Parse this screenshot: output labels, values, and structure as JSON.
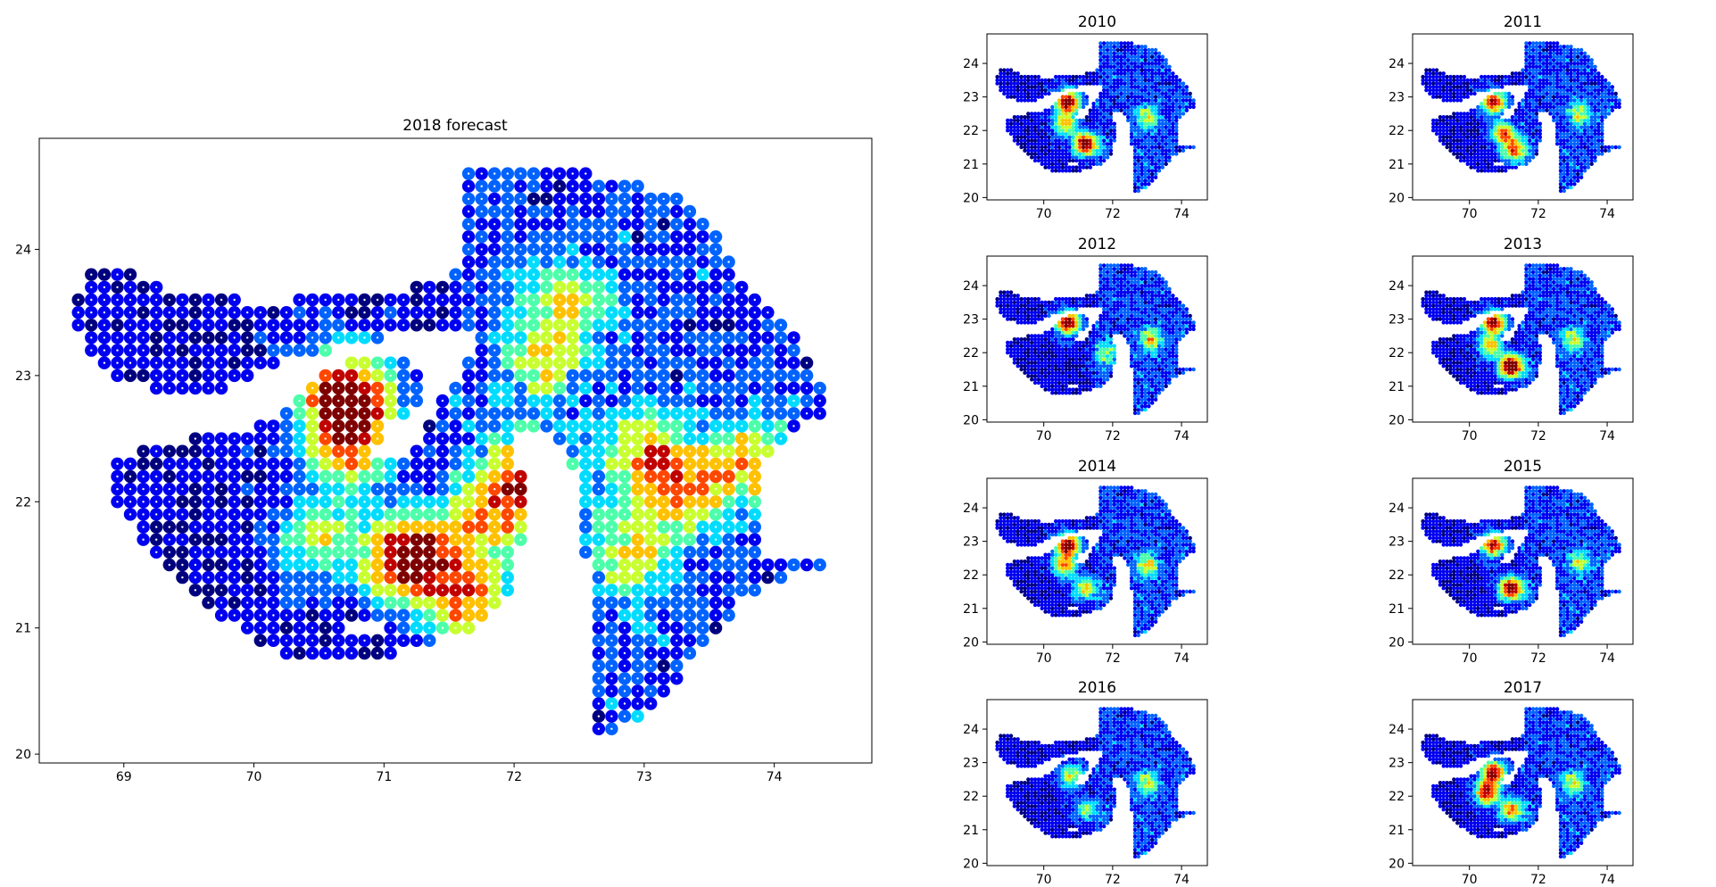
{
  "figure": {
    "main_title": "2018 forecast",
    "colormap": [
      "#00007f",
      "#0000f0",
      "#0063ff",
      "#00dcff",
      "#4dffaa",
      "#c8ff2f",
      "#ffc100",
      "#ff4700",
      "#c10000",
      "#7f0000"
    ]
  },
  "chart_data": [
    {
      "type": "scatter",
      "title": "2018 forecast",
      "xlabel": "",
      "ylabel": "",
      "xlim": [
        68.35,
        74.75
      ],
      "ylim": [
        19.93,
        24.88
      ],
      "xticks": [
        69,
        70,
        71,
        72,
        73,
        74
      ],
      "yticks": [
        20,
        21,
        22,
        23,
        24
      ],
      "grid": false,
      "marker_size": "large",
      "hotspots": [
        {
          "x": 71.2,
          "y": 21.55,
          "intensity": 0.95
        },
        {
          "x": 70.7,
          "y": 22.85,
          "intensity": 0.85
        },
        {
          "x": 70.75,
          "y": 22.45,
          "intensity": 0.55
        },
        {
          "x": 71.65,
          "y": 21.2,
          "intensity": 0.5
        },
        {
          "x": 73.0,
          "y": 22.4,
          "intensity": 0.45
        },
        {
          "x": 73.8,
          "y": 22.3,
          "intensity": 0.45
        },
        {
          "x": 72.1,
          "y": 22.2,
          "intensity": 0.6
        },
        {
          "x": 72.9,
          "y": 21.6,
          "intensity": 0.4
        },
        {
          "x": 73.3,
          "y": 22.1,
          "intensity": 0.45
        },
        {
          "x": 70.5,
          "y": 21.7,
          "intensity": 0.4
        },
        {
          "x": 71.8,
          "y": 21.9,
          "intensity": 0.45
        },
        {
          "x": 72.4,
          "y": 23.6,
          "intensity": 0.4
        },
        {
          "x": 72.2,
          "y": 23.1,
          "intensity": 0.35
        }
      ]
    },
    {
      "type": "scatter",
      "title": "2010",
      "xticks": [
        70,
        72,
        74
      ],
      "yticks": [
        20,
        21,
        22,
        23,
        24
      ],
      "xlim": [
        68.35,
        74.75
      ],
      "ylim": [
        19.93,
        24.88
      ],
      "hotspots": [
        {
          "x": 71.2,
          "y": 21.6,
          "intensity": 0.9
        },
        {
          "x": 70.7,
          "y": 22.85,
          "intensity": 0.85
        },
        {
          "x": 70.6,
          "y": 22.2,
          "intensity": 0.5
        },
        {
          "x": 73.0,
          "y": 22.4,
          "intensity": 0.4
        }
      ]
    },
    {
      "type": "scatter",
      "title": "2011",
      "xticks": [
        70,
        72,
        74
      ],
      "yticks": [
        20,
        21,
        22,
        23,
        24
      ],
      "xlim": [
        68.35,
        74.75
      ],
      "ylim": [
        19.93,
        24.88
      ],
      "hotspots": [
        {
          "x": 71.0,
          "y": 21.9,
          "intensity": 0.65
        },
        {
          "x": 70.7,
          "y": 22.85,
          "intensity": 0.75
        },
        {
          "x": 71.3,
          "y": 21.4,
          "intensity": 0.6
        },
        {
          "x": 73.2,
          "y": 22.5,
          "intensity": 0.4
        }
      ]
    },
    {
      "type": "scatter",
      "title": "2012",
      "xticks": [
        70,
        72,
        74
      ],
      "yticks": [
        20,
        21,
        22,
        23,
        24
      ],
      "xlim": [
        68.35,
        74.75
      ],
      "ylim": [
        19.93,
        24.88
      ],
      "hotspots": [
        {
          "x": 70.7,
          "y": 22.9,
          "intensity": 0.85
        },
        {
          "x": 73.1,
          "y": 22.4,
          "intensity": 0.45
        },
        {
          "x": 71.8,
          "y": 22.0,
          "intensity": 0.35
        }
      ]
    },
    {
      "type": "scatter",
      "title": "2013",
      "xticks": [
        70,
        72,
        74
      ],
      "yticks": [
        20,
        21,
        22,
        23,
        24
      ],
      "xlim": [
        68.35,
        74.75
      ],
      "ylim": [
        19.93,
        24.88
      ],
      "hotspots": [
        {
          "x": 71.2,
          "y": 21.6,
          "intensity": 1.0
        },
        {
          "x": 70.7,
          "y": 22.9,
          "intensity": 0.8
        },
        {
          "x": 70.6,
          "y": 22.2,
          "intensity": 0.5
        },
        {
          "x": 73.0,
          "y": 22.4,
          "intensity": 0.4
        }
      ]
    },
    {
      "type": "scatter",
      "title": "2014",
      "xticks": [
        70,
        72,
        74
      ],
      "yticks": [
        20,
        21,
        22,
        23,
        24
      ],
      "xlim": [
        68.35,
        74.75
      ],
      "ylim": [
        19.93,
        24.88
      ],
      "hotspots": [
        {
          "x": 70.7,
          "y": 22.9,
          "intensity": 0.85
        },
        {
          "x": 70.6,
          "y": 22.3,
          "intensity": 0.55
        },
        {
          "x": 71.2,
          "y": 21.6,
          "intensity": 0.5
        },
        {
          "x": 73.0,
          "y": 22.3,
          "intensity": 0.45
        }
      ]
    },
    {
      "type": "scatter",
      "title": "2015",
      "xticks": [
        70,
        72,
        74
      ],
      "yticks": [
        20,
        21,
        22,
        23,
        24
      ],
      "xlim": [
        68.35,
        74.75
      ],
      "ylim": [
        19.93,
        24.88
      ],
      "hotspots": [
        {
          "x": 71.2,
          "y": 21.6,
          "intensity": 0.9
        },
        {
          "x": 70.7,
          "y": 22.9,
          "intensity": 0.75
        },
        {
          "x": 73.2,
          "y": 22.4,
          "intensity": 0.35
        }
      ]
    },
    {
      "type": "scatter",
      "title": "2016",
      "xticks": [
        70,
        72,
        74
      ],
      "yticks": [
        20,
        21,
        22,
        23,
        24
      ],
      "xlim": [
        68.35,
        74.75
      ],
      "ylim": [
        19.93,
        24.88
      ],
      "hotspots": [
        {
          "x": 70.8,
          "y": 22.6,
          "intensity": 0.45
        },
        {
          "x": 71.2,
          "y": 21.6,
          "intensity": 0.35
        },
        {
          "x": 73.0,
          "y": 22.4,
          "intensity": 0.4
        }
      ]
    },
    {
      "type": "scatter",
      "title": "2017",
      "xticks": [
        70,
        72,
        74
      ],
      "yticks": [
        20,
        21,
        22,
        23,
        24
      ],
      "xlim": [
        68.35,
        74.75
      ],
      "ylim": [
        19.93,
        24.88
      ],
      "hotspots": [
        {
          "x": 70.7,
          "y": 22.7,
          "intensity": 0.8
        },
        {
          "x": 70.5,
          "y": 22.1,
          "intensity": 0.75
        },
        {
          "x": 71.2,
          "y": 21.6,
          "intensity": 0.6
        },
        {
          "x": 73.0,
          "y": 22.4,
          "intensity": 0.4
        }
      ]
    }
  ]
}
